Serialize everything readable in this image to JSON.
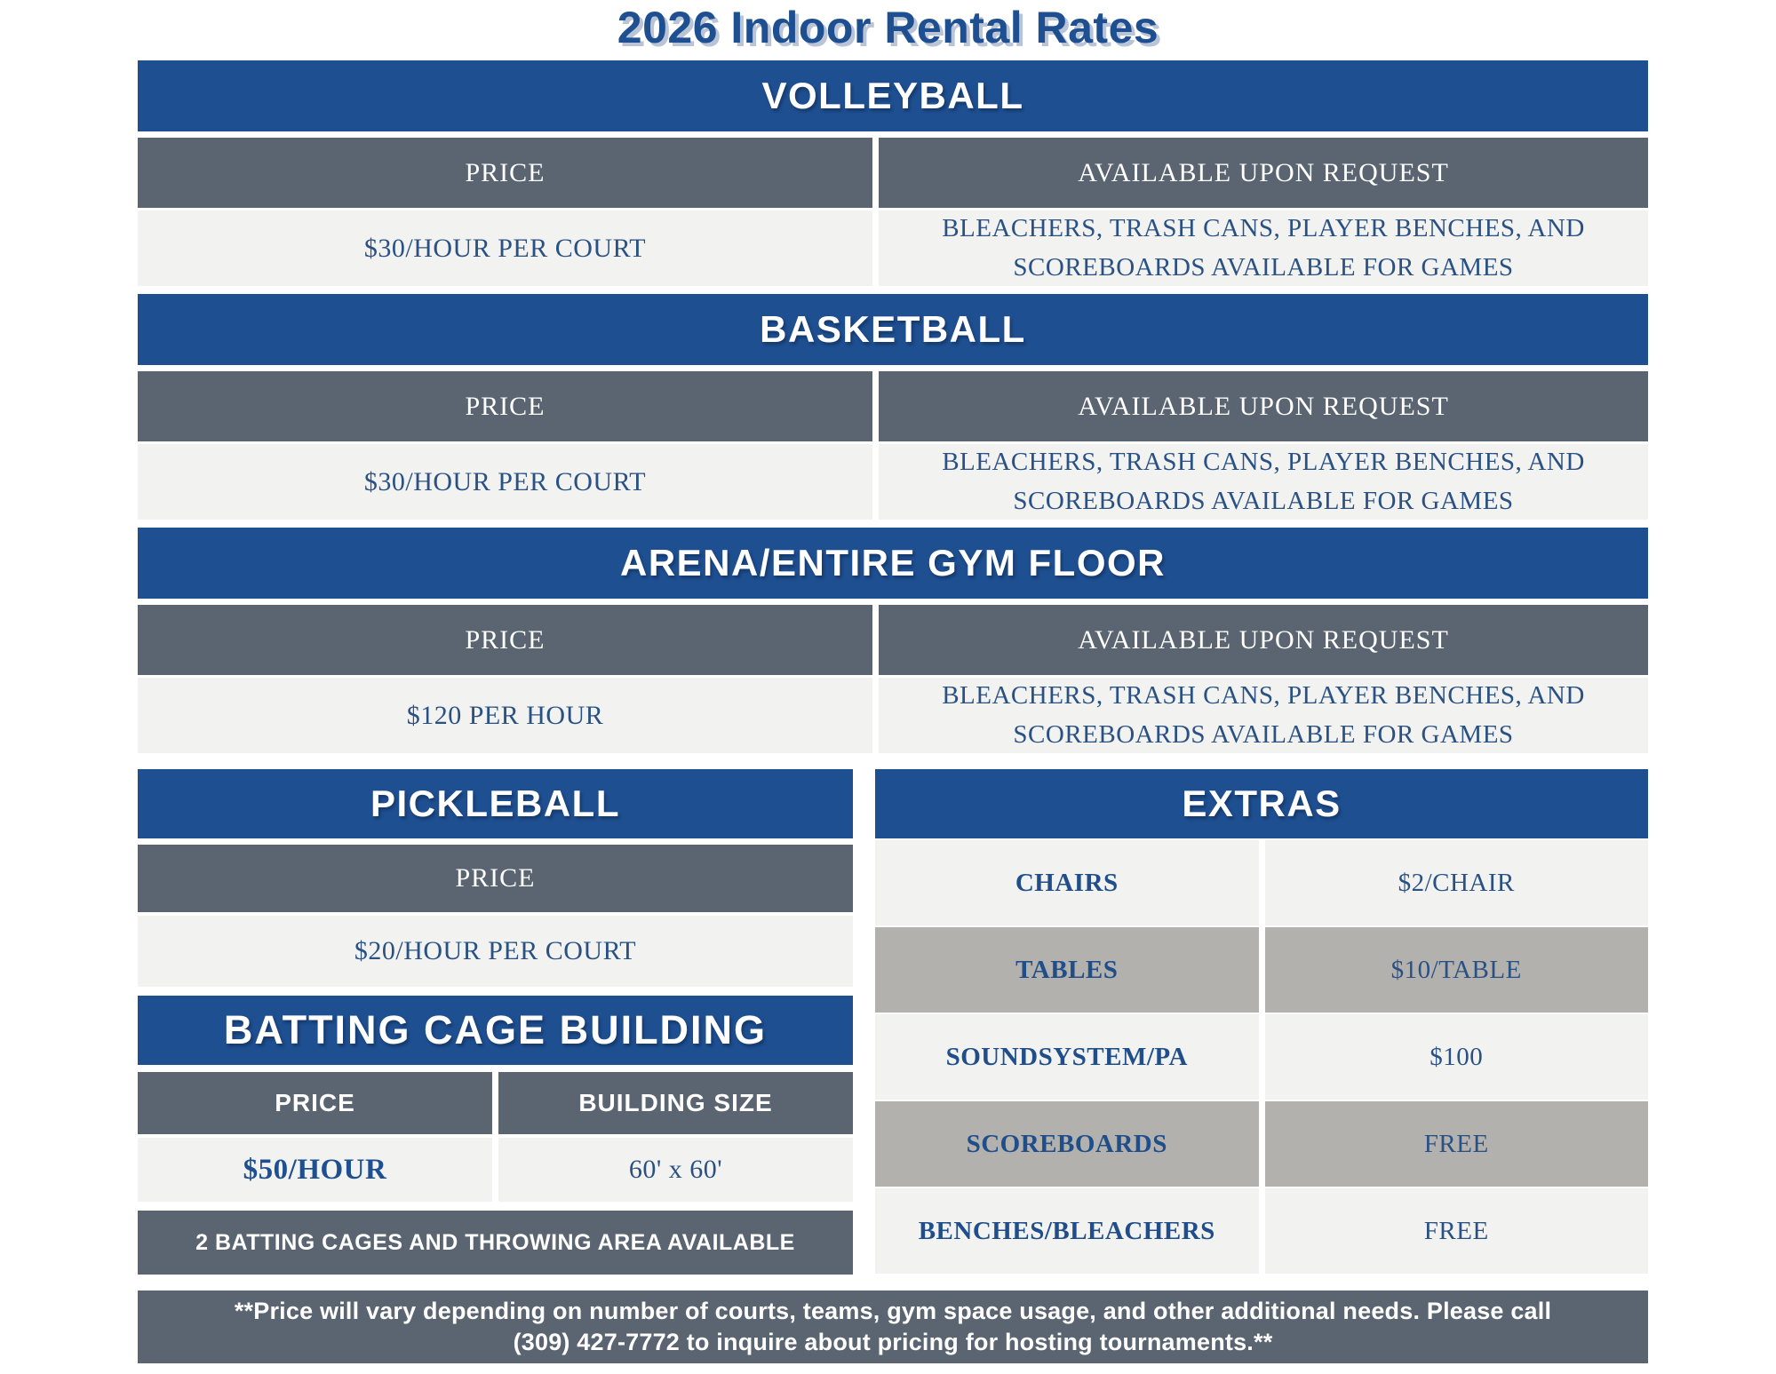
{
  "page": {
    "title": "2026 Indoor Rental Rates"
  },
  "colors": {
    "band_blue": "#1e4f91",
    "slate_gray": "#5a6571",
    "light_row": "#f2f2f1",
    "mid_gray_row": "#b2b1ae",
    "text_blue": "#2a5184",
    "white": "#ffffff"
  },
  "main_tables": [
    {
      "title": "VOLLEYBALL",
      "price_header": "PRICE",
      "request_header": "AVAILABLE UPON REQUEST",
      "price": "$30/HOUR PER COURT",
      "request": "BLEACHERS, TRASH CANS, PLAYER BENCHES, AND SCOREBOARDS AVAILABLE FOR GAMES"
    },
    {
      "title": "BASKETBALL",
      "price_header": "PRICE",
      "request_header": "AVAILABLE UPON REQUEST",
      "price": "$30/HOUR PER COURT",
      "request": "BLEACHERS, TRASH CANS, PLAYER BENCHES, AND SCOREBOARDS AVAILABLE FOR GAMES"
    },
    {
      "title": "ARENA/ENTIRE GYM FLOOR",
      "price_header": "PRICE",
      "request_header": "AVAILABLE UPON REQUEST",
      "price": "$120 PER HOUR",
      "request": "BLEACHERS, TRASH CANS, PLAYER BENCHES, AND SCOREBOARDS AVAILABLE FOR GAMES"
    }
  ],
  "pickleball": {
    "title": "PICKLEBALL",
    "price_header": "PRICE",
    "price": "$20/HOUR PER COURT"
  },
  "batting_cage": {
    "title": "BATTING CAGE BUILDING",
    "price_header": "PRICE",
    "size_header": "BUILDING SIZE",
    "price": "$50/HOUR",
    "size": "60' x 60'",
    "note": "2 BATTING CAGES AND THROWING AREA AVAILABLE"
  },
  "extras": {
    "title": "EXTRAS",
    "rows": [
      {
        "label": "CHAIRS",
        "value": "$2/CHAIR"
      },
      {
        "label": "TABLES",
        "value": "$10/TABLE"
      },
      {
        "label": "SOUNDSYSTEM/PA",
        "value": "$100"
      },
      {
        "label": "SCOREBOARDS",
        "value": "FREE"
      },
      {
        "label": "BENCHES/BLEACHERS",
        "value": "FREE"
      }
    ]
  },
  "footer": {
    "line1": "**Price will vary depending on number of courts, teams, gym space usage, and other additional needs. Please call",
    "line2": "(309) 427-7772 to inquire about pricing for hosting tournaments.**"
  }
}
